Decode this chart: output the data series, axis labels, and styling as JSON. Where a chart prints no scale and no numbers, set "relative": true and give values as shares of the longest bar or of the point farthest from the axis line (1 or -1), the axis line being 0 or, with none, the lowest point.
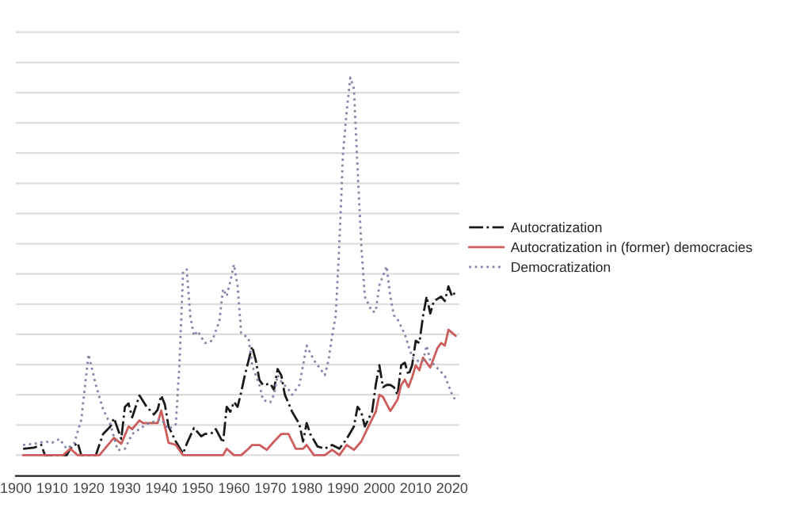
{
  "chart_data": {
    "type": "line",
    "relative": true,
    "grid": "y",
    "legend": "right",
    "xlim": [
      1900,
      2022
    ],
    "xticks": [
      1900,
      1910,
      1920,
      1930,
      1940,
      1950,
      1960,
      1970,
      1980,
      1990,
      2000,
      2010,
      2020
    ],
    "series": [
      {
        "name": "Autocratization",
        "color": "#1a1a1a",
        "line_style": "dashdot",
        "x": [
          1902,
          1905,
          1907,
          1908,
          1910,
          1914,
          1915,
          1917,
          1918,
          1920,
          1922,
          1924,
          1926,
          1927,
          1929,
          1930,
          1931,
          1932,
          1934,
          1936,
          1938,
          1939,
          1940,
          1941,
          1942,
          1944,
          1946,
          1947,
          1949,
          1951,
          1952,
          1954,
          1955,
          1957,
          1958,
          1959,
          1960,
          1961,
          1962,
          1963,
          1965,
          1966,
          1967,
          1968,
          1970,
          1971,
          1972,
          1973,
          1974,
          1976,
          1978,
          1979,
          1980,
          1981,
          1983,
          1985,
          1987,
          1989,
          1991,
          1993,
          1994,
          1995,
          1996,
          1998,
          1999,
          2000,
          2001,
          2002,
          2003,
          2004,
          2005,
          2006,
          2007,
          2008,
          2009,
          2010,
          2011,
          2012,
          2013,
          2014,
          2015,
          2016,
          2017,
          2018,
          2019,
          2020,
          2021
        ],
        "values": [
          0.017,
          0.02,
          0.027,
          0,
          0,
          0,
          0.017,
          0.033,
          0,
          0,
          0,
          0.056,
          0.076,
          0.098,
          0.043,
          0.128,
          0.137,
          0.1,
          0.158,
          0.128,
          0.108,
          0.12,
          0.158,
          0.134,
          0.076,
          0.036,
          0.004,
          0.03,
          0.072,
          0.05,
          0.056,
          0.059,
          0.069,
          0.033,
          0.128,
          0.115,
          0.141,
          0.128,
          0.167,
          0.212,
          0.288,
          0.251,
          0.199,
          0.186,
          0.189,
          0.173,
          0.228,
          0.212,
          0.16,
          0.115,
          0.082,
          0.036,
          0.085,
          0.056,
          0.023,
          0.017,
          0.027,
          0.017,
          0.043,
          0.076,
          0.128,
          0.115,
          0.076,
          0.115,
          0.186,
          0.238,
          0.18,
          0.186,
          0.186,
          0.18,
          0.16,
          0.238,
          0.245,
          0.212,
          0.238,
          0.303,
          0.297,
          0.368,
          0.42,
          0.375,
          0.408,
          0.414,
          0.42,
          0.408,
          0.447,
          0.42,
          0.434
        ]
      },
      {
        "name": "Autocratization in (former) democracies",
        "color": "#cd5c5c",
        "line_style": "solid",
        "x": [
          1902,
          1913,
          1915,
          1917,
          1923,
          1925,
          1927,
          1929,
          1931,
          1932,
          1934,
          1935,
          1939,
          1940,
          1941,
          1942,
          1944,
          1946,
          1957,
          1958,
          1960,
          1962,
          1964,
          1965,
          1967,
          1969,
          1971,
          1973,
          1975,
          1977,
          1979,
          1980,
          1982,
          1985,
          1987,
          1989,
          1991,
          1993,
          1995,
          1997,
          1999,
          2000,
          2001,
          2003,
          2005,
          2006,
          2007,
          2008,
          2009,
          2010,
          2011,
          2012,
          2014,
          2016,
          2017,
          2018,
          2019,
          2021
        ],
        "values": [
          0,
          0,
          0.017,
          0,
          0,
          0.023,
          0.046,
          0.03,
          0.076,
          0.069,
          0.092,
          0.085,
          0.085,
          0.118,
          0.076,
          0.033,
          0.027,
          0,
          0,
          0.017,
          0,
          0,
          0.017,
          0.027,
          0.027,
          0.014,
          0.036,
          0.056,
          0.056,
          0.017,
          0.017,
          0.027,
          0,
          0,
          0.014,
          0,
          0.027,
          0.014,
          0.036,
          0.076,
          0.115,
          0.16,
          0.154,
          0.117,
          0.147,
          0.186,
          0.2,
          0.18,
          0.206,
          0.238,
          0.225,
          0.258,
          0.232,
          0.284,
          0.297,
          0.29,
          0.332,
          0.316
        ]
      },
      {
        "name": "Democratization",
        "color": "#8585aa",
        "line_style": "dotted",
        "x": [
          1902,
          1905,
          1908,
          1910,
          1912,
          1914,
          1916,
          1918,
          1920,
          1922,
          1924,
          1926,
          1928,
          1930,
          1932,
          1934,
          1936,
          1938,
          1940,
          1942,
          1944,
          1945,
          1946,
          1947,
          1948,
          1949,
          1950,
          1952,
          1954,
          1956,
          1957,
          1958,
          1959,
          1960,
          1961,
          1962,
          1964,
          1965,
          1967,
          1968,
          1970,
          1971,
          1972,
          1973,
          1975,
          1976,
          1978,
          1980,
          1982,
          1984,
          1985,
          1986,
          1987,
          1988,
          1989,
          1990,
          1991,
          1992,
          1993,
          1994,
          1995,
          1996,
          1998,
          1999,
          2000,
          2002,
          2003,
          2004,
          2005,
          2007,
          2009,
          2010,
          2012,
          2013,
          2014,
          2016,
          2018,
          2020,
          2021
        ],
        "values": [
          0.027,
          0.03,
          0.036,
          0.033,
          0.043,
          0.017,
          0.03,
          0.094,
          0.267,
          0.186,
          0.121,
          0.082,
          0.013,
          0.017,
          0.056,
          0.069,
          0.082,
          0.089,
          0.095,
          0.069,
          0.082,
          0.238,
          0.486,
          0.492,
          0.368,
          0.316,
          0.329,
          0.297,
          0.303,
          0.355,
          0.44,
          0.421,
          0.46,
          0.505,
          0.447,
          0.323,
          0.31,
          0.238,
          0.186,
          0.146,
          0.14,
          0.16,
          0.212,
          0.195,
          0.174,
          0.16,
          0.186,
          0.29,
          0.251,
          0.225,
          0.212,
          0.251,
          0.316,
          0.37,
          0.56,
          0.8,
          0.91,
          1.0,
          0.97,
          0.76,
          0.56,
          0.42,
          0.38,
          0.38,
          0.45,
          0.5,
          0.42,
          0.37,
          0.36,
          0.32,
          0.26,
          0.25,
          0.25,
          0.29,
          0.25,
          0.23,
          0.21,
          0.16,
          0.145
        ]
      }
    ]
  }
}
